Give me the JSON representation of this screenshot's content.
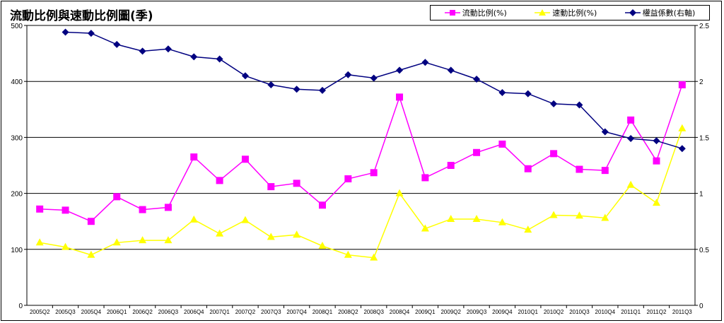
{
  "chart_data": {
    "type": "line",
    "title": "流動比例與速動比例圖(季)",
    "categories": [
      "2005Q2",
      "2005Q3",
      "2005Q4",
      "2006Q1",
      "2006Q2",
      "2006Q3",
      "2006Q4",
      "2007Q1",
      "2007Q2",
      "2007Q3",
      "2007Q4",
      "2008Q1",
      "2008Q2",
      "2008Q3",
      "2008Q4",
      "2009Q1",
      "2009Q2",
      "2009Q3",
      "2009Q4",
      "2010Q1",
      "2010Q2",
      "2010Q3",
      "2010Q4",
      "2011Q1",
      "2011Q2",
      "2011Q3"
    ],
    "series": [
      {
        "name": "流動比例(%)",
        "axis": "left",
        "color": "#ff00ff",
        "marker": "square",
        "values": [
          172,
          170,
          150,
          194,
          171,
          175,
          265,
          223,
          261,
          212,
          218,
          179,
          226,
          237,
          372,
          228,
          250,
          273,
          288,
          244,
          271,
          243,
          241,
          331,
          258,
          394
        ]
      },
      {
        "name": "速動比例(%)",
        "axis": "left",
        "color": "#ffff00",
        "marker": "triangle",
        "values": [
          112,
          104,
          90,
          112,
          116,
          116,
          153,
          128,
          152,
          122,
          126,
          106,
          90,
          85,
          200,
          137,
          154,
          154,
          148,
          135,
          161,
          160,
          156,
          215,
          183,
          316
        ]
      },
      {
        "name": "權益係數(右軸)",
        "axis": "right",
        "color": "#000080",
        "marker": "diamond",
        "values": [
          null,
          2.44,
          2.43,
          2.33,
          2.27,
          2.29,
          2.22,
          2.2,
          2.05,
          1.97,
          1.93,
          1.92,
          2.06,
          2.03,
          2.1,
          2.17,
          2.1,
          2.02,
          1.9,
          1.89,
          1.8,
          1.79,
          1.55,
          1.49,
          1.47,
          1.4
        ]
      }
    ],
    "ylim": [
      0,
      500
    ],
    "yticks": [
      0,
      100,
      200,
      300,
      400,
      500
    ],
    "y2lim": [
      0,
      2.5
    ],
    "y2ticks": [
      "0",
      "0.5",
      "1",
      "1.5",
      "2",
      "2.5"
    ],
    "grid": true,
    "legend": "top-right"
  }
}
